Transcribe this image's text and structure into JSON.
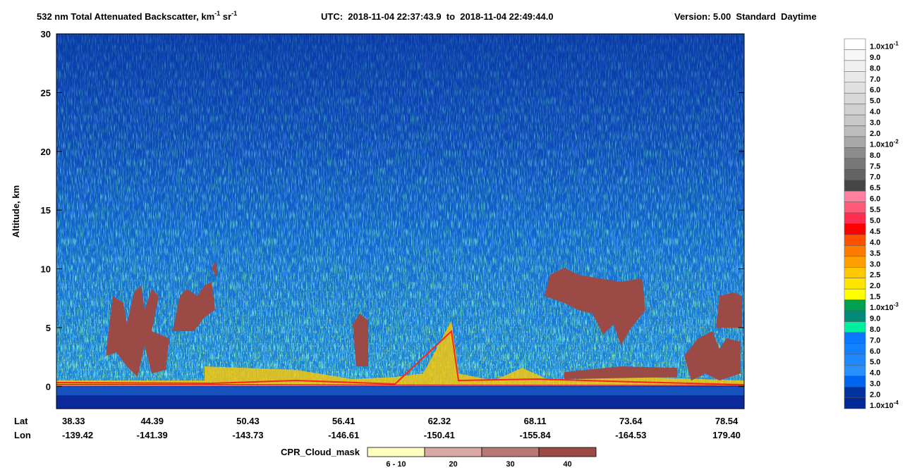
{
  "chart_data": {
    "type": "curtain",
    "title_parts": [
      {
        "text": "532 nm Total Attenuated Backscatter, km"
      },
      {
        "sup": "-1"
      },
      {
        "text": " sr"
      },
      {
        "sup": "-1"
      }
    ],
    "utc": "UTC:  2018-11-04 22:37:43.9  to  2018-11-04 22:49:44.0",
    "version": "Version: 5.00  Standard  Daytime",
    "y_label": "Altitude, km",
    "ylim": [
      -1.9,
      30
    ],
    "yticks": [
      0,
      5,
      10,
      15,
      20,
      25,
      30
    ],
    "lat_label": "Lat",
    "lon_label": "Lon",
    "lat": [
      "38.33",
      "44.39",
      "50.43",
      "56.41",
      "62.32",
      "68.11",
      "73.64",
      "78.54"
    ],
    "lon": [
      "-139.42",
      "-141.39",
      "-143.73",
      "-146.61",
      "-150.41",
      "-155.84",
      "-164.53",
      "179.40"
    ],
    "colorbar": [
      {
        "label": "1.0x10",
        "sup": "-1",
        "color": "#ffffff"
      },
      {
        "label": "9.0",
        "color": "#f7f7f7"
      },
      {
        "label": "8.0",
        "color": "#f0f0f0"
      },
      {
        "label": "7.0",
        "color": "#e8e8e8"
      },
      {
        "label": "6.0",
        "color": "#e0e0e0"
      },
      {
        "label": "5.0",
        "color": "#d8d8d8"
      },
      {
        "label": "4.0",
        "color": "#d0d0d0"
      },
      {
        "label": "3.0",
        "color": "#c8c8c8"
      },
      {
        "label": "2.0",
        "color": "#bdbdbd"
      },
      {
        "label": "1.0x10",
        "sup": "-2",
        "color": "#a8a8a8"
      },
      {
        "label": "8.0",
        "color": "#8c8c8c"
      },
      {
        "label": "7.5",
        "color": "#787878"
      },
      {
        "label": "7.0",
        "color": "#646464"
      },
      {
        "label": "6.5",
        "color": "#464646"
      },
      {
        "label": "6.0",
        "color": "#ff80a0"
      },
      {
        "label": "5.5",
        "color": "#ff5a78"
      },
      {
        "label": "5.0",
        "color": "#ff2e50"
      },
      {
        "label": "4.5",
        "color": "#ff0000"
      },
      {
        "label": "4.0",
        "color": "#ff5000"
      },
      {
        "label": "3.5",
        "color": "#ff7a00"
      },
      {
        "label": "3.0",
        "color": "#ffa000"
      },
      {
        "label": "2.5",
        "color": "#ffc800"
      },
      {
        "label": "2.0",
        "color": "#ffe600"
      },
      {
        "label": "1.5",
        "color": "#ffff00"
      },
      {
        "label": "1.0x10",
        "sup": "-3",
        "color": "#00a050"
      },
      {
        "label": "9.0",
        "color": "#008878"
      },
      {
        "label": "8.0",
        "color": "#00f0a0"
      },
      {
        "label": "7.0",
        "color": "#0a78ff"
      },
      {
        "label": "6.0",
        "color": "#1480ff"
      },
      {
        "label": "5.0",
        "color": "#1e88ff"
      },
      {
        "label": "4.0",
        "color": "#2890ff"
      },
      {
        "label": "3.0",
        "color": "#0064f0"
      },
      {
        "label": "2.0",
        "color": "#0032a0"
      },
      {
        "label": "1.0x10",
        "sup": "-4",
        "color": "#002896"
      }
    ],
    "cpr_title": "CPR_Cloud_mask",
    "cpr_legend": [
      {
        "label": "6 - 10",
        "color": "#ffffc0"
      },
      {
        "label": "20",
        "color": "#d8a8a4"
      },
      {
        "label": "30",
        "color": "#b87874"
      },
      {
        "label": "40",
        "color": "#9c4a46"
      }
    ]
  }
}
